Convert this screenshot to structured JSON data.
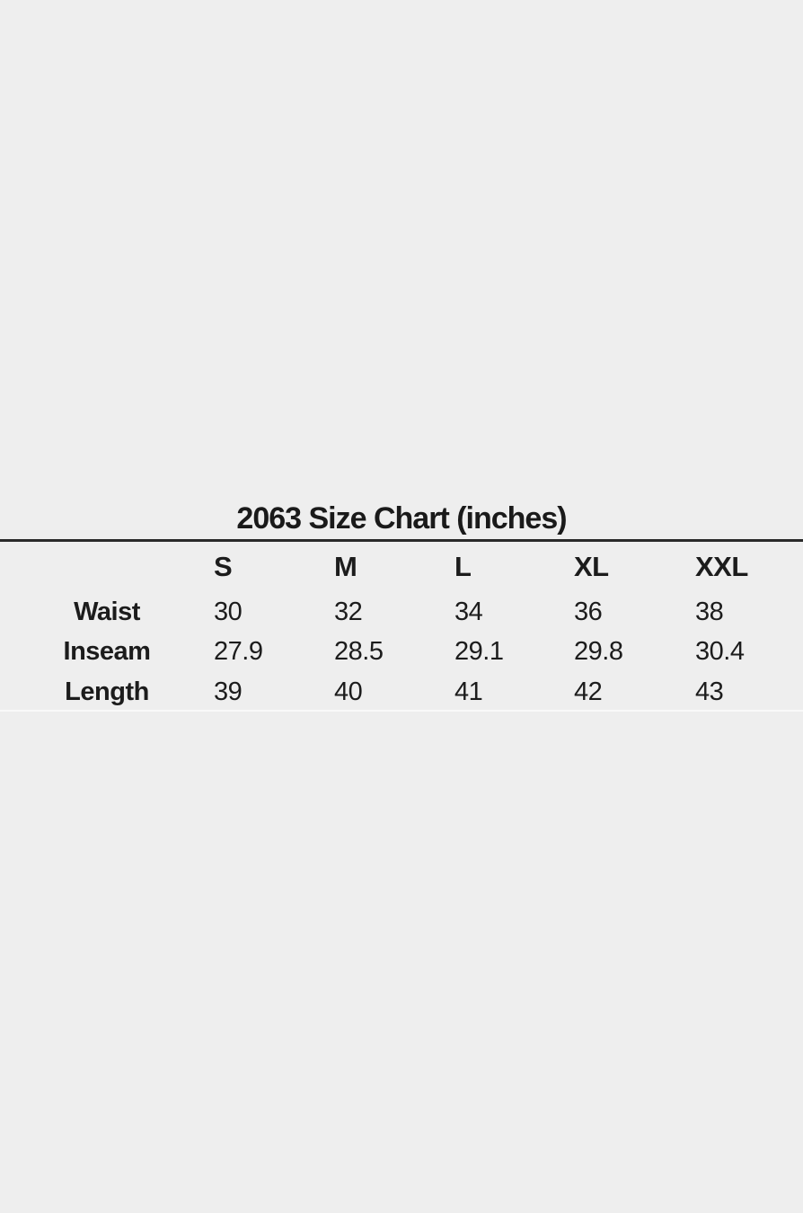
{
  "colors": {
    "background": "#eeeeee",
    "text": "#1c1c1c",
    "title_rule": "#2a2a2a",
    "bottom_divider": "#f9f9f9"
  },
  "chart_data": {
    "type": "table",
    "title": "2063 Size Chart (inches)",
    "unit_label": "inches",
    "columns": [
      "S",
      "M",
      "L",
      "XL",
      "XXL"
    ],
    "rows": [
      {
        "label": "Waist",
        "values": [
          30,
          32,
          34,
          36,
          38
        ]
      },
      {
        "label": "Inseam",
        "values": [
          27.9,
          28.5,
          29.1,
          29.8,
          30.4
        ]
      },
      {
        "label": "Length",
        "values": [
          39,
          40,
          41,
          42,
          43
        ]
      }
    ]
  }
}
